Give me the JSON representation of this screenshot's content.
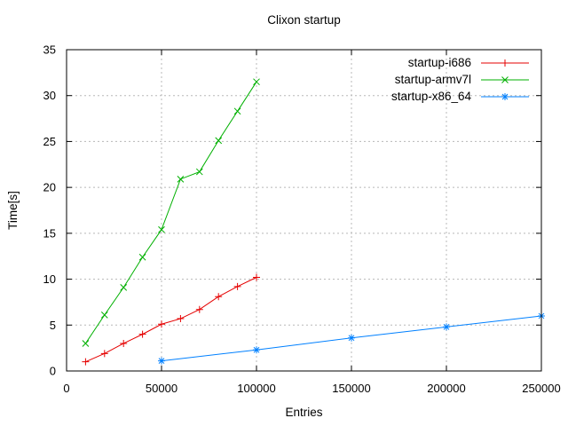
{
  "window": {
    "background": "#ffffff",
    "text_color": "#000000",
    "grid_color": "#b8b8b8"
  },
  "chart_data": {
    "type": "line",
    "title": "Clixon startup",
    "xlabel": "Entries",
    "ylabel": "Time[s]",
    "xlim": [
      0,
      250000
    ],
    "ylim": [
      0,
      35
    ],
    "x_ticks": [
      0,
      50000,
      100000,
      150000,
      200000,
      250000
    ],
    "y_ticks": [
      0,
      5,
      10,
      15,
      20,
      25,
      30,
      35
    ],
    "grid": true,
    "legend_position": "top-right-inside",
    "series": [
      {
        "name": "startup-i686",
        "color": "#e50000",
        "marker": "plus",
        "points": [
          [
            10000,
            1.0
          ],
          [
            20000,
            1.9
          ],
          [
            30000,
            3.0
          ],
          [
            40000,
            4.0
          ],
          [
            50000,
            5.1
          ],
          [
            60000,
            5.7
          ],
          [
            70000,
            6.7
          ],
          [
            80000,
            8.1
          ],
          [
            90000,
            9.2
          ],
          [
            100000,
            10.2
          ]
        ]
      },
      {
        "name": "startup-armv7l",
        "color": "#00b000",
        "marker": "cross",
        "points": [
          [
            10000,
            3.0
          ],
          [
            20000,
            6.1
          ],
          [
            30000,
            9.1
          ],
          [
            40000,
            12.4
          ],
          [
            50000,
            15.4
          ],
          [
            60000,
            20.9
          ],
          [
            70000,
            21.7
          ],
          [
            80000,
            25.1
          ],
          [
            90000,
            28.3
          ],
          [
            100000,
            31.5
          ]
        ]
      },
      {
        "name": "startup-x86_64",
        "color": "#0080ff",
        "marker": "asterisk",
        "points": [
          [
            50000,
            1.1
          ],
          [
            100000,
            2.3
          ],
          [
            150000,
            3.6
          ],
          [
            200000,
            4.8
          ],
          [
            250000,
            6.0
          ]
        ]
      }
    ]
  }
}
